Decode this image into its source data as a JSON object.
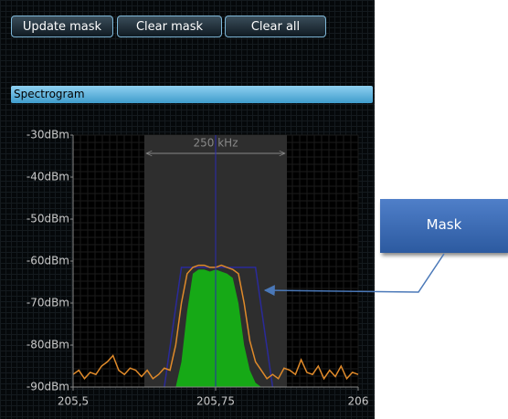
{
  "buttons": [
    "Update mask",
    "Clear mask",
    "Clear all"
  ],
  "panel_title": "Spectrogram",
  "callout": "Mask",
  "chart_data": {
    "type": "line",
    "xlim": [
      205.5,
      206
    ],
    "ylim": [
      -90,
      -30
    ],
    "xticks": [
      {
        "value": 205.5,
        "label": "205,5"
      },
      {
        "value": 205.75,
        "label": "205,75"
      },
      {
        "value": 206,
        "label": "206"
      }
    ],
    "yticks": [
      {
        "value": -30,
        "label": "-30dBm"
      },
      {
        "value": -40,
        "label": "-40dBm"
      },
      {
        "value": -50,
        "label": "-50dBm"
      },
      {
        "value": -60,
        "label": "-60dBm"
      },
      {
        "value": -70,
        "label": "-70dBm"
      },
      {
        "value": -80,
        "label": "-80dBm"
      },
      {
        "value": -90,
        "label": "-90dBm"
      }
    ],
    "grid": true,
    "cursor": 205.75,
    "band": {
      "range": [
        205.625,
        205.875
      ],
      "label": "250 kHz"
    },
    "series": [
      {
        "color": "#e08a2a",
        "fill": false,
        "x": [
          205.5,
          205.51,
          205.52,
          205.53,
          205.54,
          205.55,
          205.56,
          205.57,
          205.58,
          205.59,
          205.6,
          205.61,
          205.62,
          205.63,
          205.64,
          205.65,
          205.66,
          205.67,
          205.68,
          205.69,
          205.7,
          205.71,
          205.72,
          205.73,
          205.74,
          205.75,
          205.76,
          205.77,
          205.78,
          205.79,
          205.8,
          205.81,
          205.82,
          205.83,
          205.84,
          205.85,
          205.86,
          205.87,
          205.88,
          205.89,
          205.9,
          205.91,
          205.92,
          205.93,
          205.94,
          205.95,
          205.96,
          205.97,
          205.98,
          205.99,
          206
        ],
        "values": [
          -87,
          -86,
          -88,
          -86.5,
          -87,
          -85,
          -84,
          -82.5,
          -86,
          -87,
          -85.5,
          -86,
          -87.5,
          -86,
          -88,
          -87,
          -85.5,
          -86,
          -80,
          -70,
          -63,
          -61.5,
          -61,
          -61,
          -61.5,
          -61.5,
          -61,
          -61.5,
          -62,
          -63,
          -70,
          -79,
          -84,
          -86,
          -88,
          -87,
          -88,
          -85.5,
          -86,
          -87,
          -83.5,
          -86.5,
          -87,
          -85,
          -88,
          -86,
          -87.5,
          -85,
          -88,
          -86.5,
          -87
        ]
      },
      {
        "color": "#16a916",
        "fill": true,
        "x": [
          205.68,
          205.69,
          205.7,
          205.71,
          205.72,
          205.73,
          205.74,
          205.75,
          205.76,
          205.77,
          205.78,
          205.79,
          205.8,
          205.81,
          205.82,
          205.83
        ],
        "values": [
          -90,
          -84,
          -72,
          -63,
          -62,
          -62,
          -62.5,
          -62,
          -62.5,
          -63,
          -64,
          -70,
          -80,
          -86,
          -89,
          -90
        ]
      },
      {
        "color": "#2a2a9a",
        "fill": false,
        "x": [
          205.66,
          205.69,
          205.82,
          205.85
        ],
        "values": [
          -90,
          -61.5,
          -61.5,
          -90
        ]
      }
    ]
  }
}
